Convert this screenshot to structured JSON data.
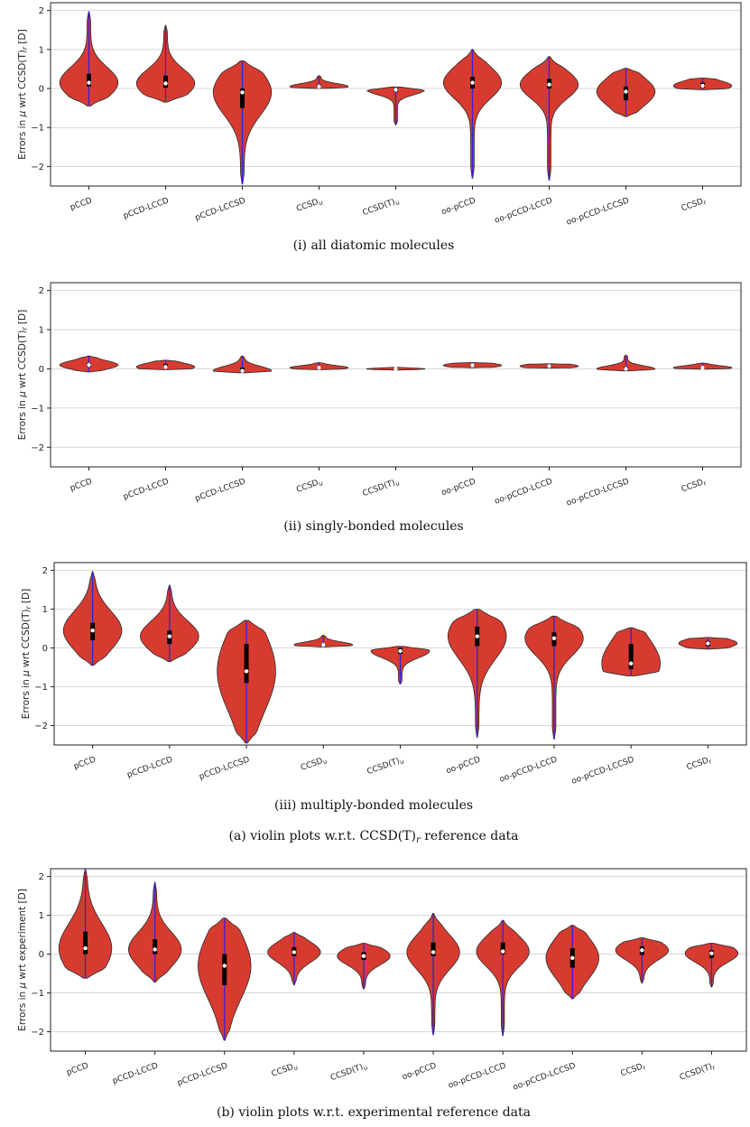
{
  "figure": {
    "captions": {
      "panel_i": "(i) all diatomic molecules",
      "panel_ii": "(ii) singly-bonded molecules",
      "panel_iii": "(iii) multiply-bonded molecules",
      "group_a": "(a) violin plots w.r.t. CCSD(T)r reference data",
      "panel_b": "(b) violin plots w.r.t. experimental reference data"
    }
  },
  "chart_data": [
    {
      "type": "violin",
      "ylabel": "Errors in μ wrt CCSD(T)r [D]",
      "ylim": [
        -2.5,
        2.2
      ],
      "yticks": [
        -2,
        -1,
        0,
        1,
        2
      ],
      "grid": "horizontal",
      "categories": [
        "pCCD",
        "pCCD-LCCD",
        "pCCD-LCCSD",
        "CCSDu",
        "CCSD(T)u",
        "oo-pCCD",
        "oo-pCCD-LCCD",
        "oo-pCCD-LCCSD",
        "CCSDr"
      ],
      "series": [
        {
          "min": -0.45,
          "max": 1.97,
          "median": 0.15,
          "q1": 0.05,
          "q3": 0.38
        },
        {
          "min": -0.35,
          "max": 1.62,
          "median": 0.13,
          "q1": 0.02,
          "q3": 0.33
        },
        {
          "min": -2.45,
          "max": 0.71,
          "median": -0.1,
          "q1": -0.5,
          "q3": 0.0
        },
        {
          "min": 0.0,
          "max": 0.33,
          "median": 0.05,
          "q1": 0.03,
          "q3": 0.1
        },
        {
          "min": -0.93,
          "max": 0.04,
          "median": -0.03,
          "q1": -0.08,
          "q3": 0.02
        },
        {
          "min": -2.3,
          "max": 1.0,
          "median": 0.15,
          "q1": 0.0,
          "q3": 0.3
        },
        {
          "min": -2.35,
          "max": 0.82,
          "median": 0.1,
          "q1": 0.0,
          "q3": 0.25
        },
        {
          "min": -0.72,
          "max": 0.52,
          "median": -0.08,
          "q1": -0.3,
          "q3": 0.05
        },
        {
          "min": -0.03,
          "max": 0.27,
          "median": 0.07,
          "q1": 0.02,
          "q3": 0.15
        }
      ]
    },
    {
      "type": "violin",
      "ylabel": "Errors in μ wrt CCSD(T)r [D]",
      "ylim": [
        -2.5,
        2.2
      ],
      "yticks": [
        -2,
        -1,
        0,
        1,
        2
      ],
      "grid": "horizontal",
      "categories": [
        "pCCD",
        "pCCD-LCCD",
        "pCCD-LCCSD",
        "CCSDu",
        "CCSD(T)u",
        "oo-pCCD",
        "oo-pCCD-LCCD",
        "oo-pCCD-LCCSD",
        "CCSDr"
      ],
      "series": [
        {
          "min": -0.08,
          "max": 0.33,
          "median": 0.1,
          "q1": 0.05,
          "q3": 0.15
        },
        {
          "min": -0.02,
          "max": 0.22,
          "median": 0.05,
          "q1": 0.02,
          "q3": 0.12
        },
        {
          "min": -0.1,
          "max": 0.33,
          "median": -0.05,
          "q1": -0.08,
          "q3": 0.03
        },
        {
          "min": -0.02,
          "max": 0.16,
          "median": 0.03,
          "q1": 0.01,
          "q3": 0.06
        },
        {
          "min": -0.03,
          "max": 0.04,
          "median": 0.0,
          "q1": -0.01,
          "q3": 0.01
        },
        {
          "min": 0.03,
          "max": 0.16,
          "median": 0.09,
          "q1": 0.06,
          "q3": 0.12
        },
        {
          "min": 0.02,
          "max": 0.13,
          "median": 0.07,
          "q1": 0.04,
          "q3": 0.1
        },
        {
          "min": -0.05,
          "max": 0.35,
          "median": 0.0,
          "q1": -0.02,
          "q3": 0.05
        },
        {
          "min": -0.01,
          "max": 0.15,
          "median": 0.03,
          "q1": 0.01,
          "q3": 0.06
        }
      ]
    },
    {
      "type": "violin",
      "ylabel": "Errors in μ wrt CCSD(T)r [D]",
      "ylim": [
        -2.5,
        2.2
      ],
      "yticks": [
        -2,
        -1,
        0,
        1,
        2
      ],
      "grid": "horizontal",
      "categories": [
        "pCCD",
        "pCCD-LCCD",
        "pCCD-LCCSD",
        "CCSDu",
        "CCSD(T)u",
        "oo-pCCD",
        "oo-pCCD-LCCD",
        "oo-pCCD-LCCSD",
        "CCSDr"
      ],
      "series": [
        {
          "min": -0.45,
          "max": 1.97,
          "median": 0.45,
          "q1": 0.2,
          "q3": 0.65
        },
        {
          "min": -0.35,
          "max": 1.62,
          "median": 0.3,
          "q1": 0.1,
          "q3": 0.45
        },
        {
          "min": -2.45,
          "max": 0.71,
          "median": -0.6,
          "q1": -0.9,
          "q3": 0.1
        },
        {
          "min": 0.03,
          "max": 0.33,
          "median": 0.08,
          "q1": 0.05,
          "q3": 0.12
        },
        {
          "min": -0.93,
          "max": 0.04,
          "median": -0.08,
          "q1": -0.15,
          "q3": 0.0
        },
        {
          "min": -2.3,
          "max": 1.0,
          "median": 0.3,
          "q1": 0.05,
          "q3": 0.55
        },
        {
          "min": -2.35,
          "max": 0.82,
          "median": 0.25,
          "q1": 0.05,
          "q3": 0.4
        },
        {
          "min": -0.72,
          "max": 0.52,
          "median": -0.4,
          "q1": -0.55,
          "q3": 0.1
        },
        {
          "min": -0.03,
          "max": 0.27,
          "median": 0.12,
          "q1": 0.05,
          "q3": 0.18
        }
      ]
    },
    {
      "type": "violin",
      "ylabel": "Errors in μ wrt experiment [D]",
      "ylim": [
        -2.5,
        2.2
      ],
      "yticks": [
        -2,
        -1,
        0,
        1,
        2
      ],
      "grid": "horizontal",
      "categories": [
        "pCCD",
        "pCCD-LCCD",
        "pCCD-LCCSD",
        "CCSDu",
        "CCSD(T)u",
        "oo-pCCD",
        "oo-pCCD-LCCD",
        "oo-pCCD-LCCSD",
        "CCSDr",
        "CCSD(T)r"
      ],
      "series": [
        {
          "min": -0.62,
          "max": 2.2,
          "median": 0.15,
          "q1": 0.0,
          "q3": 0.58
        },
        {
          "min": -0.72,
          "max": 1.85,
          "median": 0.12,
          "q1": 0.0,
          "q3": 0.38
        },
        {
          "min": -2.22,
          "max": 0.93,
          "median": -0.3,
          "q1": -0.8,
          "q3": 0.0
        },
        {
          "min": -0.8,
          "max": 0.56,
          "median": 0.05,
          "q1": -0.05,
          "q3": 0.18
        },
        {
          "min": -0.9,
          "max": 0.28,
          "median": -0.05,
          "q1": -0.15,
          "q3": 0.05
        },
        {
          "min": -2.08,
          "max": 1.05,
          "median": 0.05,
          "q1": -0.05,
          "q3": 0.3
        },
        {
          "min": -2.1,
          "max": 0.87,
          "median": 0.07,
          "q1": 0.0,
          "q3": 0.3
        },
        {
          "min": -1.15,
          "max": 0.74,
          "median": -0.1,
          "q1": -0.35,
          "q3": 0.15
        },
        {
          "min": -0.75,
          "max": 0.42,
          "median": 0.1,
          "q1": -0.02,
          "q3": 0.2
        },
        {
          "min": -0.85,
          "max": 0.28,
          "median": 0.02,
          "q1": -0.1,
          "q3": 0.1
        }
      ]
    }
  ]
}
